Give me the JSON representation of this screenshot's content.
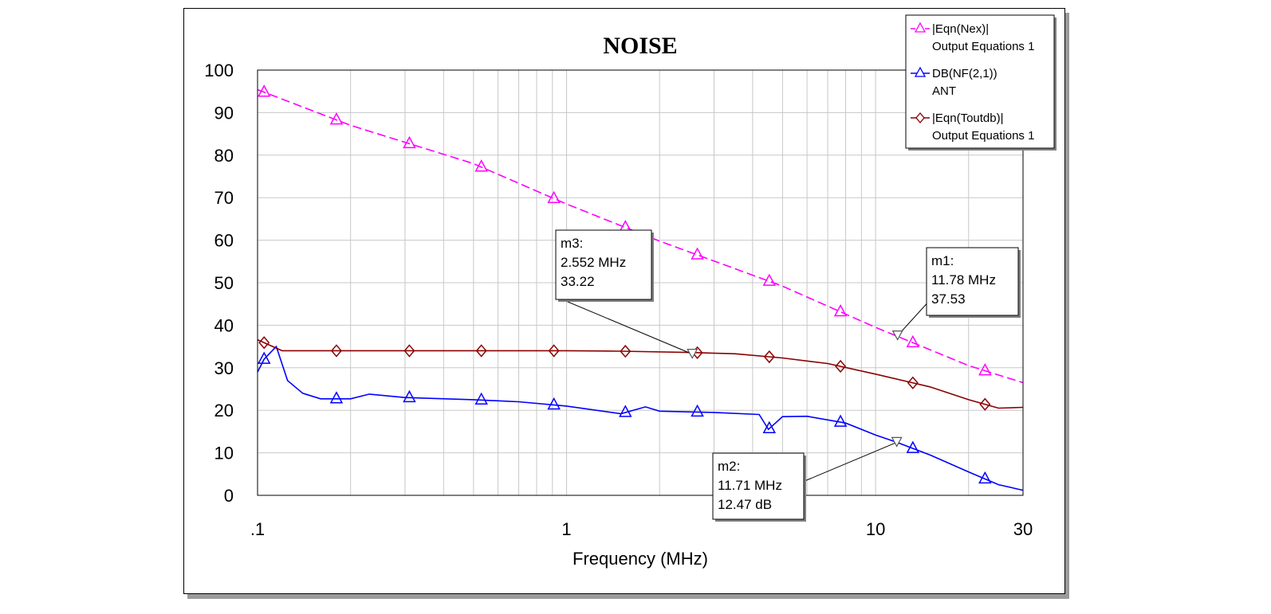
{
  "chart_data": {
    "type": "line",
    "title": "NOISE",
    "xlabel": "Frequency (MHz)",
    "ylabel": "",
    "xscale": "log",
    "xlim": [
      0.1,
      30
    ],
    "ylim": [
      0,
      100
    ],
    "x_ticks": [
      {
        "value": 0.1,
        "label": ".1"
      },
      {
        "value": 1,
        "label": "1"
      },
      {
        "value": 10,
        "label": "10"
      },
      {
        "value": 30,
        "label": "30"
      }
    ],
    "y_ticks": [
      0,
      10,
      20,
      30,
      40,
      50,
      60,
      70,
      80,
      90,
      100
    ],
    "grid": true,
    "legend_position": "top-right",
    "series": [
      {
        "name": "|Eqn(Nex)|",
        "subtitle": "Output Equations 1",
        "color": "#ff00ff",
        "dash": true,
        "marker": "triangle",
        "points": [
          [
            0.1,
            95.4
          ],
          [
            0.2,
            87.0
          ],
          [
            0.5,
            78.0
          ],
          [
            1,
            68.5
          ],
          [
            2,
            59.8
          ],
          [
            5,
            49.2
          ],
          [
            10,
            39.5
          ],
          [
            20,
            30.5
          ],
          [
            30,
            26.5
          ]
        ],
        "marker_x": [
          0.105,
          0.18,
          0.31,
          0.53,
          0.91,
          1.55,
          2.65,
          4.53,
          7.7,
          13.2,
          22.6
        ]
      },
      {
        "name": "DB(NF(2,1))",
        "subtitle": "ANT",
        "color": "#0000ff",
        "dash": false,
        "marker": "triangle",
        "points": [
          [
            0.1,
            29
          ],
          [
            0.105,
            32
          ],
          [
            0.115,
            35
          ],
          [
            0.125,
            27
          ],
          [
            0.14,
            24
          ],
          [
            0.16,
            22.7
          ],
          [
            0.2,
            22.7
          ],
          [
            0.23,
            23.8
          ],
          [
            0.3,
            23
          ],
          [
            0.5,
            22.5
          ],
          [
            0.7,
            22
          ],
          [
            1,
            21
          ],
          [
            1.5,
            19.2
          ],
          [
            1.8,
            20.8
          ],
          [
            2.0,
            19.8
          ],
          [
            3,
            19.5
          ],
          [
            4.2,
            19
          ],
          [
            4.5,
            15.5
          ],
          [
            5,
            18.5
          ],
          [
            6,
            18.6
          ],
          [
            8,
            17
          ],
          [
            10,
            14.2
          ],
          [
            11.71,
            12.47
          ],
          [
            15,
            9.5
          ],
          [
            20,
            5.5
          ],
          [
            25,
            2.5
          ],
          [
            30,
            1.2
          ]
        ],
        "marker_x": [
          0.105,
          0.18,
          0.31,
          0.53,
          0.91,
          1.55,
          2.65,
          4.53,
          7.7,
          13.2,
          22.6
        ]
      },
      {
        "name": "|Eqn(Toutdb)|",
        "subtitle": "Output Equations 1",
        "color": "#8b0000",
        "dash": false,
        "marker": "diamond",
        "points": [
          [
            0.1,
            36.6
          ],
          [
            0.12,
            34
          ],
          [
            0.2,
            34
          ],
          [
            0.5,
            34
          ],
          [
            1,
            34
          ],
          [
            1.5,
            33.9
          ],
          [
            2.5,
            33.6
          ],
          [
            3.5,
            33.3
          ],
          [
            5,
            32.3
          ],
          [
            7,
            31
          ],
          [
            10,
            28.5
          ],
          [
            15,
            25.5
          ],
          [
            20,
            22.5
          ],
          [
            25,
            20.5
          ],
          [
            30,
            20.7
          ]
        ],
        "marker_x": [
          0.105,
          0.18,
          0.31,
          0.53,
          0.91,
          1.55,
          2.65,
          4.53,
          7.7,
          13.2,
          22.6
        ]
      }
    ],
    "markers": [
      {
        "id": "m1",
        "lines": [
          "m1:",
          "11.78 MHz",
          "37.53"
        ],
        "x": 11.78,
        "y": 37.53
      },
      {
        "id": "m2",
        "lines": [
          "m2:",
          "11.71 MHz",
          "12.47 dB"
        ],
        "x": 11.71,
        "y": 12.47
      },
      {
        "id": "m3",
        "lines": [
          "m3:",
          "2.552 MHz",
          "33.22"
        ],
        "x": 2.552,
        "y": 33.22
      }
    ]
  }
}
